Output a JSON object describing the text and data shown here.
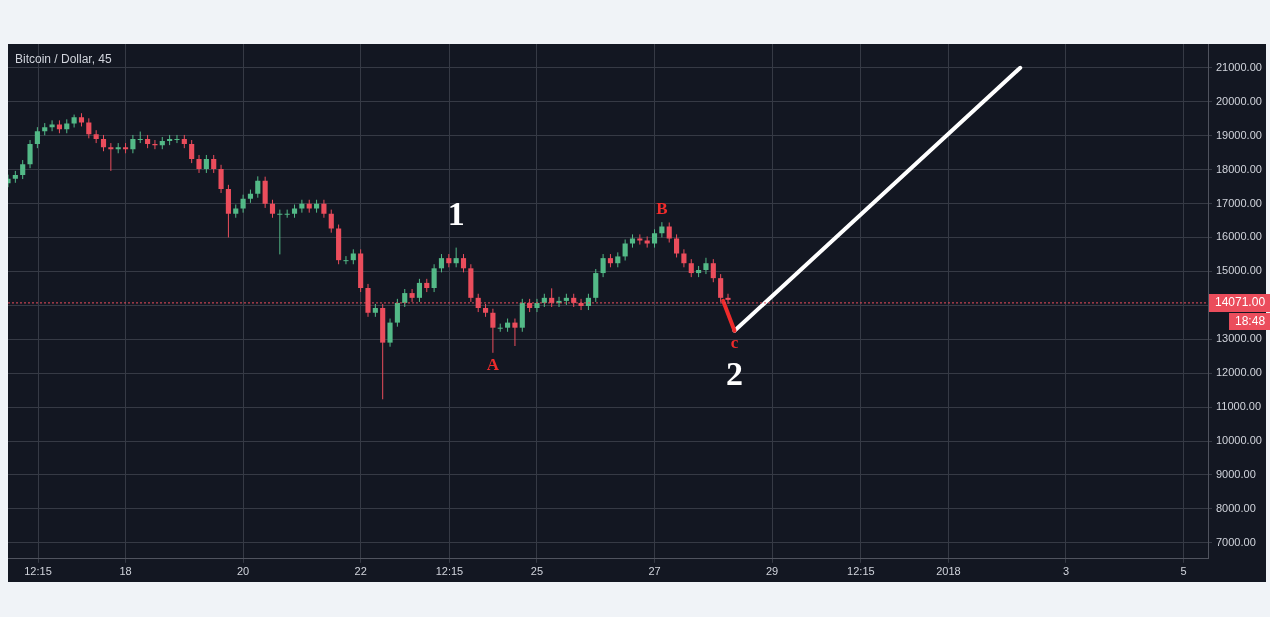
{
  "chart_data": {
    "type": "candlestick",
    "title": "Bitcoin / Dollar, 45",
    "series": [
      {
        "x": [
          "2017-12-16T00:00",
          "2017-12-16T03:00",
          "2017-12-16T06:00",
          "2017-12-16T09:00",
          "2017-12-16T12:00",
          "2017-12-16T15:00",
          "2017-12-16T18:00",
          "2017-12-16T21:00",
          "2017-12-17T00:00",
          "2017-12-17T03:00",
          "2017-12-17T06:00",
          "2017-12-17T09:00",
          "2017-12-17T12:00",
          "2017-12-17T15:00",
          "2017-12-17T18:00",
          "2017-12-17T21:00",
          "2017-12-18T00:00",
          "2017-12-18T03:00",
          "2017-12-18T06:00",
          "2017-12-18T09:00",
          "2017-12-18T12:00",
          "2017-12-18T15:00",
          "2017-12-18T18:00",
          "2017-12-18T21:00",
          "2017-12-19T00:00",
          "2017-12-19T03:00",
          "2017-12-19T06:00",
          "2017-12-19T09:00",
          "2017-12-19T12:00",
          "2017-12-19T15:00",
          "2017-12-19T18:00",
          "2017-12-19T21:00",
          "2017-12-20T00:00",
          "2017-12-20T03:00",
          "2017-12-20T06:00",
          "2017-12-20T09:00",
          "2017-12-20T12:00",
          "2017-12-20T15:00",
          "2017-12-20T18:00",
          "2017-12-20T21:00",
          "2017-12-21T00:00",
          "2017-12-21T03:00",
          "2017-12-21T06:00",
          "2017-12-21T09:00",
          "2017-12-21T12:00",
          "2017-12-21T15:00",
          "2017-12-21T18:00",
          "2017-12-21T21:00",
          "2017-12-22T00:00",
          "2017-12-22T03:00",
          "2017-12-22T06:00",
          "2017-12-22T09:00",
          "2017-12-22T12:00",
          "2017-12-22T15:00",
          "2017-12-22T18:00",
          "2017-12-22T21:00",
          "2017-12-23T00:00",
          "2017-12-23T03:00",
          "2017-12-23T06:00",
          "2017-12-23T09:00",
          "2017-12-23T12:00",
          "2017-12-23T15:00",
          "2017-12-23T18:00",
          "2017-12-23T21:00",
          "2017-12-24T00:00",
          "2017-12-24T03:00",
          "2017-12-24T06:00",
          "2017-12-24T09:00",
          "2017-12-24T12:00",
          "2017-12-24T15:00",
          "2017-12-24T18:00",
          "2017-12-24T21:00",
          "2017-12-25T00:00",
          "2017-12-25T03:00",
          "2017-12-25T06:00",
          "2017-12-25T09:00",
          "2017-12-25T12:00",
          "2017-12-25T15:00",
          "2017-12-25T18:00",
          "2017-12-25T21:00",
          "2017-12-26T00:00",
          "2017-12-26T03:00",
          "2017-12-26T06:00",
          "2017-12-26T09:00",
          "2017-12-26T12:00",
          "2017-12-26T15:00",
          "2017-12-26T18:00",
          "2017-12-26T21:00",
          "2017-12-27T00:00",
          "2017-12-27T03:00",
          "2017-12-27T06:00",
          "2017-12-27T09:00",
          "2017-12-27T12:00",
          "2017-12-27T15:00",
          "2017-12-27T18:00",
          "2017-12-27T21:00",
          "2017-12-28T00:00",
          "2017-12-28T03:00",
          "2017-12-28T06:00"
        ],
        "ohlc": [
          [
            17600,
            17850,
            17480,
            17730
          ],
          [
            17730,
            17960,
            17610,
            17840
          ],
          [
            17840,
            18280,
            17720,
            18160
          ],
          [
            18160,
            18870,
            18040,
            18750
          ],
          [
            18750,
            19250,
            18630,
            19130
          ],
          [
            19130,
            19370,
            19010,
            19250
          ],
          [
            19250,
            19450,
            19130,
            19330
          ],
          [
            19330,
            19450,
            19070,
            19190
          ],
          [
            19190,
            19480,
            19070,
            19360
          ],
          [
            19360,
            19620,
            19240,
            19540
          ],
          [
            19540,
            19660,
            19270,
            19390
          ],
          [
            19390,
            19510,
            18920,
            19040
          ],
          [
            19040,
            19160,
            18780,
            18900
          ],
          [
            18900,
            19020,
            18540,
            18660
          ],
          [
            18660,
            18780,
            17960,
            18600
          ],
          [
            18600,
            18780,
            18480,
            18660
          ],
          [
            18660,
            18780,
            18480,
            18600
          ],
          [
            18600,
            19020,
            18480,
            18900
          ],
          [
            18900,
            19120,
            18780,
            18900
          ],
          [
            18900,
            19020,
            18630,
            18750
          ],
          [
            18750,
            18870,
            18600,
            18720
          ],
          [
            18720,
            18960,
            18600,
            18840
          ],
          [
            18840,
            19020,
            18720,
            18900
          ],
          [
            18900,
            19020,
            18780,
            18900
          ],
          [
            18900,
            19020,
            18630,
            18750
          ],
          [
            18750,
            18870,
            18190,
            18310
          ],
          [
            18310,
            18430,
            17900,
            18020
          ],
          [
            18020,
            18430,
            17900,
            18310
          ],
          [
            18310,
            18430,
            17900,
            18020
          ],
          [
            18020,
            18140,
            17310,
            17430
          ],
          [
            17430,
            17550,
            16000,
            16700
          ],
          [
            16700,
            16970,
            16580,
            16850
          ],
          [
            16850,
            17260,
            16730,
            17140
          ],
          [
            17140,
            17410,
            17020,
            17290
          ],
          [
            17290,
            17800,
            17170,
            17670
          ],
          [
            17670,
            17790,
            16870,
            16990
          ],
          [
            16990,
            17110,
            16580,
            16700
          ],
          [
            16700,
            16820,
            15500,
            16700
          ],
          [
            16700,
            16820,
            16580,
            16700
          ],
          [
            16700,
            16970,
            16580,
            16850
          ],
          [
            16850,
            17110,
            16730,
            16990
          ],
          [
            16990,
            17110,
            16730,
            16850
          ],
          [
            16850,
            17110,
            16730,
            16990
          ],
          [
            16990,
            17110,
            16580,
            16700
          ],
          [
            16700,
            16820,
            16140,
            16260
          ],
          [
            16260,
            16380,
            15210,
            15330
          ],
          [
            15330,
            15450,
            15210,
            15330
          ],
          [
            15330,
            15650,
            15210,
            15530
          ],
          [
            15530,
            15650,
            14390,
            14510
          ],
          [
            14510,
            14630,
            13660,
            13780
          ],
          [
            13780,
            14040,
            13660,
            13920
          ],
          [
            13920,
            14040,
            11230,
            12900
          ],
          [
            12900,
            13610,
            12780,
            13490
          ],
          [
            13490,
            14190,
            13370,
            14070
          ],
          [
            14070,
            14480,
            13950,
            14360
          ],
          [
            14360,
            14480,
            14100,
            14220
          ],
          [
            14220,
            14780,
            14100,
            14660
          ],
          [
            14660,
            14780,
            14390,
            14510
          ],
          [
            14510,
            15210,
            14390,
            15090
          ],
          [
            15090,
            15510,
            14970,
            15390
          ],
          [
            15390,
            15510,
            15120,
            15240
          ],
          [
            15240,
            15700,
            15120,
            15390
          ],
          [
            15390,
            15510,
            14970,
            15090
          ],
          [
            15090,
            15210,
            14100,
            14220
          ],
          [
            14220,
            14340,
            13800,
            13920
          ],
          [
            13920,
            14040,
            13660,
            13780
          ],
          [
            13780,
            13900,
            12600,
            13340
          ],
          [
            13340,
            13460,
            13220,
            13340
          ],
          [
            13340,
            13610,
            13220,
            13490
          ],
          [
            13490,
            13610,
            12800,
            13340
          ],
          [
            13340,
            14190,
            13220,
            14070
          ],
          [
            14070,
            14190,
            13800,
            13920
          ],
          [
            13920,
            14190,
            13800,
            14070
          ],
          [
            14070,
            14340,
            13950,
            14220
          ],
          [
            14220,
            14500,
            13950,
            14070
          ],
          [
            14070,
            14250,
            13950,
            14130
          ],
          [
            14130,
            14340,
            14010,
            14220
          ],
          [
            14220,
            14340,
            13950,
            14070
          ],
          [
            14070,
            14190,
            13860,
            13980
          ],
          [
            13980,
            14340,
            13860,
            14220
          ],
          [
            14220,
            15070,
            14100,
            14950
          ],
          [
            14950,
            15510,
            14830,
            15390
          ],
          [
            15390,
            15510,
            15120,
            15240
          ],
          [
            15240,
            15560,
            15120,
            15440
          ],
          [
            15440,
            15940,
            15320,
            15820
          ],
          [
            15820,
            16090,
            15700,
            15970
          ],
          [
            15970,
            16090,
            15790,
            15910
          ],
          [
            15910,
            16030,
            15700,
            15820
          ],
          [
            15820,
            16240,
            15700,
            16120
          ],
          [
            16120,
            16450,
            16000,
            16320
          ],
          [
            16320,
            16440,
            15850,
            15970
          ],
          [
            15970,
            16090,
            15410,
            15530
          ],
          [
            15530,
            15650,
            15120,
            15240
          ],
          [
            15240,
            15360,
            14830,
            14950
          ],
          [
            14950,
            15160,
            14830,
            15040
          ],
          [
            15040,
            15400,
            14920,
            15240
          ],
          [
            15240,
            15360,
            14680,
            14800
          ],
          [
            14800,
            14920,
            14100,
            14220
          ],
          [
            14220,
            14340,
            14040,
            14160
          ]
        ]
      },
      {
        "type": "line",
        "color": "#ef2b2b",
        "x": [
          "2017-12-28T04:00",
          "2017-12-28T08:40"
        ],
        "values": [
          14130,
          13250
        ]
      },
      {
        "type": "line",
        "color": "#ffffff",
        "x": [
          "2017-12-28T08:40",
          "2018-01-02T05:20"
        ],
        "values": [
          13250,
          21000
        ]
      }
    ],
    "xlim": [
      "2017-12-16T00:00",
      "2018-01-05T10:00"
    ],
    "xticks": [
      {
        "value": "2017-12-16T12:15",
        "label": "12:15"
      },
      {
        "value": "2017-12-18",
        "label": "18"
      },
      {
        "value": "2017-12-20",
        "label": "20"
      },
      {
        "value": "2017-12-22",
        "label": "22"
      },
      {
        "value": "2017-12-23T12:15",
        "label": "12:15"
      },
      {
        "value": "2017-12-25",
        "label": "25"
      },
      {
        "value": "2017-12-27",
        "label": "27"
      },
      {
        "value": "2017-12-29",
        "label": "29"
      },
      {
        "value": "2017-12-30T12:15",
        "label": "12:15"
      },
      {
        "value": "2018-01-01",
        "label": "2018"
      },
      {
        "value": "2018-01-03",
        "label": "3"
      },
      {
        "value": "2018-01-05",
        "label": "5"
      }
    ],
    "ylim": [
      6530,
      21700
    ],
    "yticks": [
      {
        "value": 7000,
        "label": "7000.00"
      },
      {
        "value": 8000,
        "label": "8000.00"
      },
      {
        "value": 9000,
        "label": "9000.00"
      },
      {
        "value": 10000,
        "label": "10000.00"
      },
      {
        "value": 11000,
        "label": "11000.00"
      },
      {
        "value": 12000,
        "label": "12000.00"
      },
      {
        "value": 13000,
        "label": "13000.00"
      },
      {
        "value": 14000,
        "label": null
      },
      {
        "value": 15000,
        "label": "15000.00"
      },
      {
        "value": 16000,
        "label": "16000.00"
      },
      {
        "value": 17000,
        "label": "17000.00"
      },
      {
        "value": 18000,
        "label": "18000.00"
      },
      {
        "value": 19000,
        "label": "19000.00"
      },
      {
        "value": 20000,
        "label": "20000.00"
      },
      {
        "value": 21000,
        "label": "21000.00"
      }
    ],
    "ref_lines": [
      {
        "axis": "y",
        "value": 14071,
        "label": "14071.00",
        "color": "#eb4d5c",
        "line_style": "dotted"
      }
    ],
    "annotations": [
      {
        "text": "1",
        "x": "2017-12-23T15:00",
        "y": 15700
      },
      {
        "text": "A",
        "x": "2017-12-24T06:00",
        "y": 12600
      },
      {
        "text": "B",
        "x": "2017-12-27T03:00",
        "y": 16450
      },
      {
        "text": "c",
        "x": "2017-12-28T08:40",
        "y": 13250
      },
      {
        "text": "2",
        "x": "2017-12-28T08:40",
        "y": 13250
      },
      "18:48"
    ],
    "grid": true,
    "legend": false
  }
}
